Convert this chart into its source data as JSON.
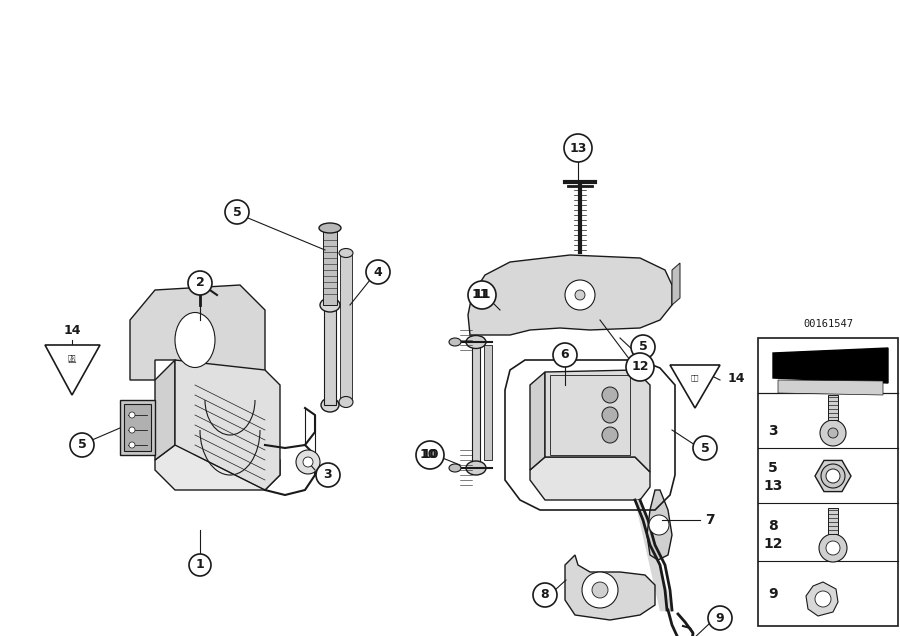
{
  "bg_color": "#ffffff",
  "fig_width": 9.0,
  "fig_height": 6.36,
  "catalog_id": "00161547",
  "lc": "#1a1a1a",
  "lw": 1.0
}
